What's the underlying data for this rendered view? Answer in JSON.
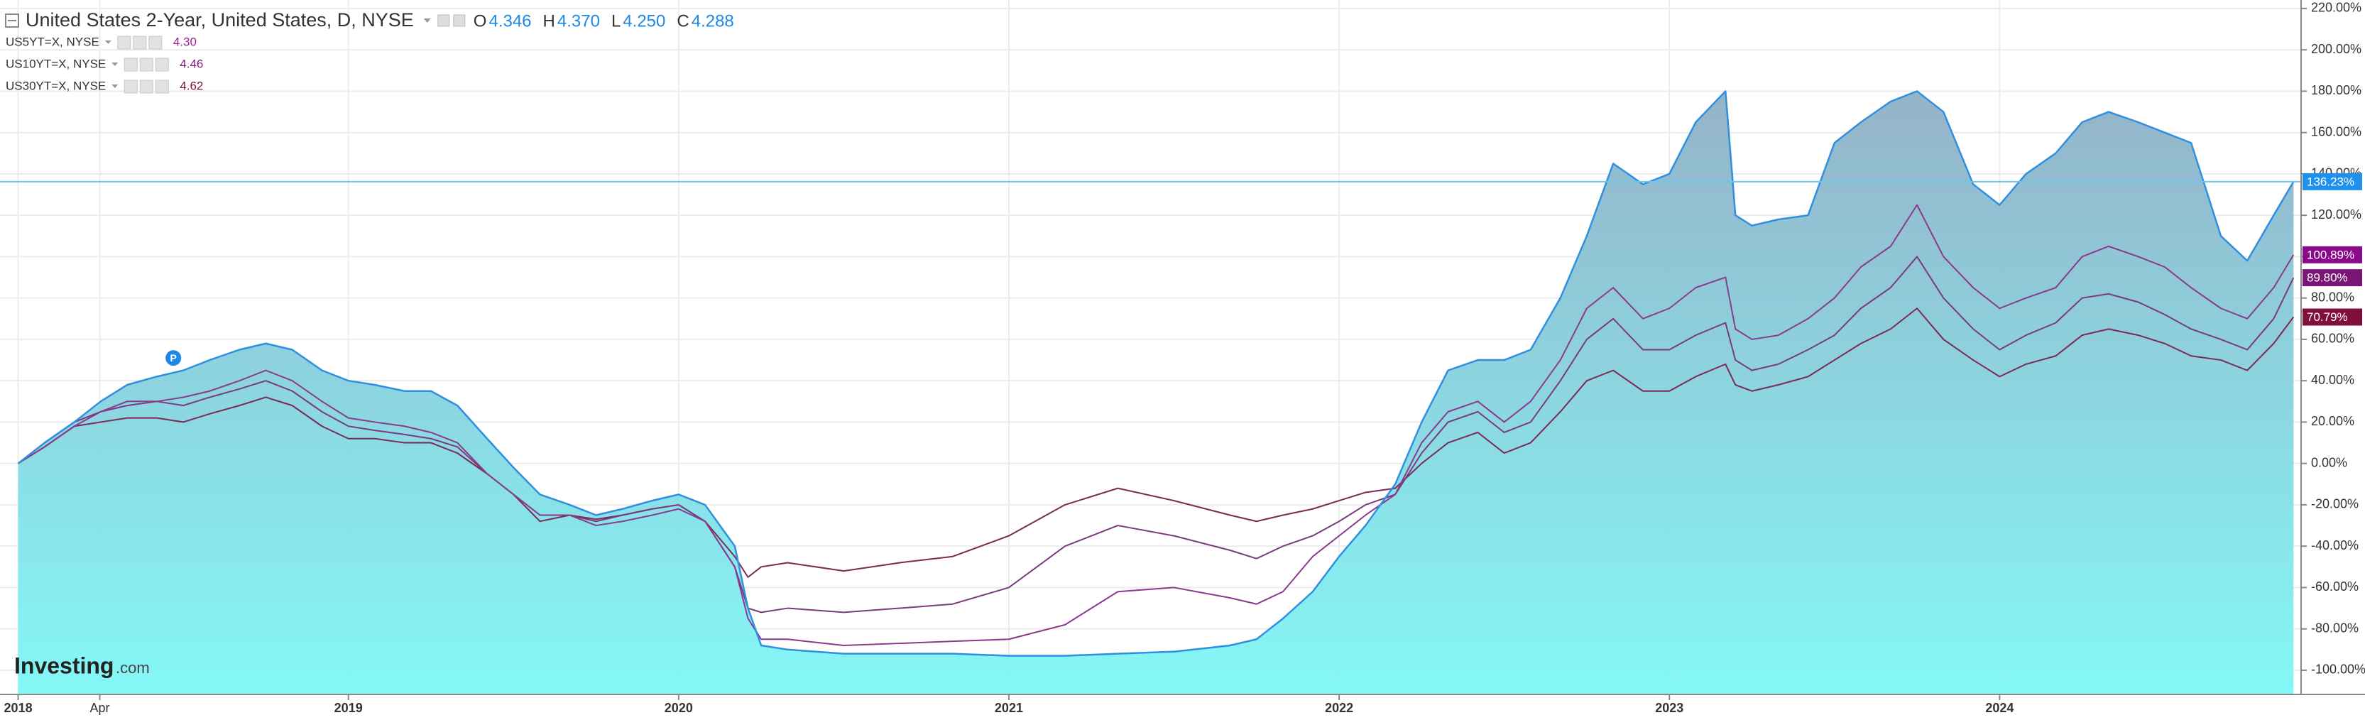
{
  "chart_data": {
    "type": "line",
    "ohlc": {
      "keys": [
        "O",
        "H",
        "L",
        "C"
      ],
      "values": [
        4.346,
        {
          "value": 4.37,
          "label": "4.370"
        },
        {
          "value": 4.25,
          "label": "4.250"
        },
        4.288
      ]
    },
    "x": [
      2018,
      2018.08,
      2018.17,
      2018.25,
      2018.33,
      2018.42,
      2018.5,
      2018.58,
      2018.67,
      2018.75,
      2018.83,
      2018.92,
      2019,
      2019.08,
      2019.17,
      2019.25,
      2019.33,
      2019.42,
      2019.5,
      2019.58,
      2019.67,
      2019.75,
      2019.83,
      2019.92,
      2020,
      2020.08,
      2020.17,
      2020.21,
      2020.25,
      2020.33,
      2020.5,
      2020.67,
      2020.83,
      2021,
      2021.17,
      2021.33,
      2021.5,
      2021.67,
      2021.75,
      2021.83,
      2021.92,
      2022,
      2022.08,
      2022.17,
      2022.25,
      2022.33,
      2022.42,
      2022.5,
      2022.58,
      2022.67,
      2022.75,
      2022.83,
      2022.92,
      2023,
      2023.08,
      2023.17,
      2023.2,
      2023.25,
      2023.33,
      2023.42,
      2023.5,
      2023.58,
      2023.67,
      2023.75,
      2023.83,
      2023.92,
      2024,
      2024.08,
      2024.17,
      2024.25,
      2024.33,
      2024.42,
      2024.5,
      2024.58,
      2024.67,
      2024.75,
      2024.83,
      2024.89
    ],
    "series": [
      {
        "name": "United States 2-Year, United States, D, NYSE",
        "style": "area",
        "color": "#2f8fe0",
        "fill_gradient": [
          "#8fafc6",
          "#7ef7f7"
        ],
        "values": [
          0,
          10,
          20,
          30,
          38,
          42,
          45,
          50,
          55,
          58,
          55,
          45,
          40,
          38,
          35,
          35,
          28,
          12,
          -2,
          -15,
          -20,
          -25,
          -22,
          -18,
          -15,
          -20,
          -40,
          -70,
          -88,
          -90,
          -92,
          -92,
          -92,
          -93,
          -93,
          -92,
          -91,
          -88,
          -85,
          -75,
          -62,
          -45,
          -30,
          -10,
          20,
          45,
          50,
          50,
          55,
          80,
          110,
          145,
          135,
          140,
          165,
          180,
          120,
          115,
          118,
          120,
          155,
          165,
          175,
          180,
          170,
          135,
          125,
          140,
          150,
          165,
          170,
          165,
          160,
          155,
          110,
          98,
          120,
          136.23
        ],
        "last": {
          "value": 136.23,
          "label": "136.23%"
        },
        "last_color": "#1e90ee"
      },
      {
        "name": "US5YT=X, NYSE",
        "style": "line",
        "color": "#8a3a8e",
        "quote": {
          "value": 4.3,
          "label": "4.30"
        },
        "quote_color": "#a0209a",
        "values": [
          0,
          8,
          18,
          25,
          30,
          30,
          32,
          35,
          40,
          45,
          40,
          30,
          22,
          20,
          18,
          15,
          10,
          -5,
          -15,
          -25,
          -25,
          -30,
          -28,
          -25,
          -22,
          -28,
          -50,
          -75,
          -85,
          -85,
          -88,
          -87,
          -86,
          -85,
          -78,
          -62,
          -60,
          -65,
          -68,
          -62,
          -45,
          -35,
          -25,
          -15,
          10,
          25,
          30,
          20,
          30,
          50,
          75,
          85,
          70,
          75,
          85,
          90,
          65,
          60,
          62,
          70,
          80,
          95,
          105,
          125,
          100,
          85,
          75,
          80,
          85,
          100,
          105,
          100,
          95,
          85,
          75,
          70,
          85,
          100.89
        ],
        "last": {
          "value": 100.89,
          "label": "100.89%"
        },
        "last_color": "#8b0a8b"
      },
      {
        "name": "US10YT=X, NYSE",
        "style": "line",
        "color": "#7a3a7e",
        "quote": {
          "value": 4.46,
          "label": "4.46"
        },
        "quote_color": "#8a1a8a",
        "values": [
          0,
          10,
          20,
          25,
          28,
          30,
          28,
          32,
          36,
          40,
          35,
          25,
          18,
          16,
          14,
          12,
          8,
          -5,
          -15,
          -25,
          -25,
          -28,
          -25,
          -22,
          -20,
          -28,
          -50,
          -70,
          -72,
          -70,
          -72,
          -70,
          -68,
          -60,
          -40,
          -30,
          -35,
          -42,
          -46,
          -40,
          -35,
          -28,
          -20,
          -15,
          5,
          20,
          25,
          15,
          20,
          40,
          60,
          70,
          55,
          55,
          62,
          68,
          50,
          45,
          48,
          55,
          62,
          75,
          85,
          100,
          80,
          65,
          55,
          62,
          68,
          80,
          82,
          78,
          72,
          65,
          60,
          55,
          70,
          89.8
        ],
        "last": {
          "value": 89.8,
          "label": "89.80%"
        },
        "last_color": "#7a1577"
      },
      {
        "name": "US30YT=X, NYSE",
        "style": "line",
        "color": "#7a2a55",
        "quote": {
          "value": 4.62,
          "label": "4.62"
        },
        "quote_color": "#7d1240",
        "values": [
          0,
          8,
          18,
          20,
          22,
          22,
          20,
          24,
          28,
          32,
          28,
          18,
          12,
          12,
          10,
          10,
          5,
          -5,
          -15,
          -28,
          -25,
          -27,
          -25,
          -22,
          -20,
          -28,
          -45,
          -55,
          -50,
          -48,
          -52,
          -48,
          -45,
          -35,
          -20,
          -12,
          -18,
          -25,
          -28,
          -25,
          -22,
          -18,
          -14,
          -12,
          0,
          10,
          15,
          5,
          10,
          25,
          40,
          45,
          35,
          35,
          42,
          48,
          38,
          35,
          38,
          42,
          50,
          58,
          65,
          75,
          60,
          50,
          42,
          48,
          52,
          62,
          65,
          62,
          58,
          52,
          50,
          45,
          58,
          70.79
        ],
        "last": {
          "value": 70.79,
          "label": "70.79%"
        },
        "last_color": "#800f3c"
      }
    ],
    "xlim": [
      2017.945,
      2024.913
    ],
    "ylim": [
      -111.7,
      224.1
    ],
    "xticks": [
      2018,
      {
        "value": 2018.247,
        "label": "Apr"
      },
      2019,
      2020,
      2021,
      2022,
      2023,
      2024
    ],
    "yticks": [
      {
        "value": -100,
        "label": "-100.00%"
      },
      {
        "value": -80,
        "label": "-80.00%"
      },
      {
        "value": -60,
        "label": "-60.00%"
      },
      {
        "value": -40,
        "label": "-40.00%"
      },
      {
        "value": -20,
        "label": "-20.00%"
      },
      {
        "value": 0,
        "label": "0.00%"
      },
      {
        "value": 20,
        "label": "20.00%"
      },
      {
        "value": 40,
        "label": "40.00%"
      },
      {
        "value": 60,
        "label": "60.00%"
      },
      {
        "value": 80,
        "label": "80.00%"
      },
      {
        "value": 100,
        "label": "100.00%"
      },
      {
        "value": 120,
        "label": "120.00%"
      },
      {
        "value": 140,
        "label": "140.00%"
      },
      {
        "value": 160,
        "label": "160.00%"
      },
      {
        "value": 180,
        "label": "180.00%"
      },
      {
        "value": 200,
        "label": "200.00%"
      },
      {
        "value": 220,
        "label": "220.00%"
      }
    ],
    "grid": true,
    "price_line_series": 0,
    "pin_label": "P",
    "logo": {
      "brand": "Investing",
      "suffix": ".com"
    }
  }
}
